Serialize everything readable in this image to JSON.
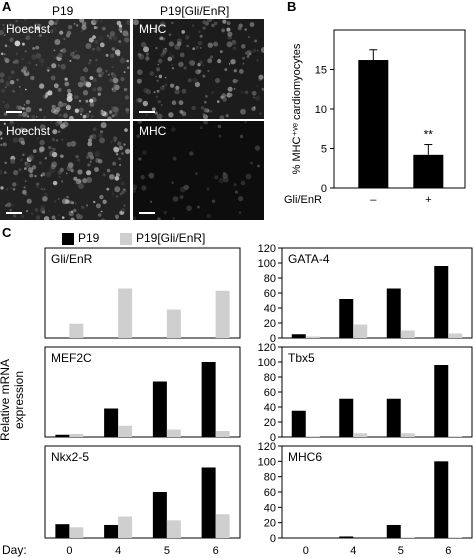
{
  "panelA": {
    "letter": "A",
    "col_headers": [
      "P19",
      "P19[Gli/EnR]"
    ],
    "tiles": [
      {
        "label": "Hoechst",
        "brightness": 0.85
      },
      {
        "label": "MHC",
        "brightness": 0.6
      },
      {
        "label": "Hoechst",
        "brightness": 0.7
      },
      {
        "label": "MHC",
        "brightness": 0.12
      }
    ]
  },
  "panelB": {
    "letter": "B",
    "chart_data": {
      "type": "bar",
      "categories": [
        "–",
        "+"
      ],
      "values": [
        16.2,
        4.2
      ],
      "errors": [
        1.3,
        1.3
      ],
      "ylabel": "% MHC⁺ᵛᵉ cardiomyocytes",
      "xlabel": "Gli/EnR",
      "ylim": [
        0,
        20
      ],
      "yticks": [
        0,
        5,
        10,
        15
      ],
      "annotation": "**",
      "color": "#000000"
    }
  },
  "panelC": {
    "letter": "C",
    "legend": [
      {
        "name": "P19",
        "color": "#000000"
      },
      {
        "name": "P19[Gli/EnR]",
        "color": "#cfcfcf"
      }
    ],
    "ylabel": "Relative mRNA expression",
    "day_label": "Day:",
    "days": [
      "0",
      "4",
      "5",
      "6"
    ],
    "chart_data": [
      {
        "type": "bar",
        "title": "Gli/EnR",
        "categories": [
          "0",
          "4",
          "5",
          "6"
        ],
        "ylim": [
          0,
          120
        ],
        "yticks": [],
        "series": [
          {
            "name": "P19",
            "values": [
              0,
              0,
              0,
              0
            ]
          },
          {
            "name": "P19[Gli/EnR]",
            "values": [
              19,
              66,
              38,
              63
            ]
          }
        ]
      },
      {
        "type": "bar",
        "title": "GATA-4",
        "categories": [
          "0",
          "4",
          "5",
          "6"
        ],
        "ylim": [
          0,
          120
        ],
        "yticks": [
          0,
          20,
          40,
          60,
          80,
          100,
          120
        ],
        "series": [
          {
            "name": "P19",
            "values": [
              5,
              52,
              66,
              96
            ]
          },
          {
            "name": "P19[Gli/EnR]",
            "values": [
              2,
              18,
              10,
              6
            ]
          }
        ]
      },
      {
        "type": "bar",
        "title": "MEF2C",
        "categories": [
          "0",
          "4",
          "5",
          "6"
        ],
        "ylim": [
          0,
          120
        ],
        "yticks": [],
        "series": [
          {
            "name": "P19",
            "values": [
              3,
              38,
              74,
              100
            ]
          },
          {
            "name": "P19[Gli/EnR]",
            "values": [
              4,
              15,
              10,
              8
            ]
          }
        ]
      },
      {
        "type": "bar",
        "title": "Tbx5",
        "categories": [
          "0",
          "4",
          "5",
          "6"
        ],
        "ylim": [
          0,
          120
        ],
        "yticks": [
          0,
          20,
          40,
          60,
          80,
          100,
          120
        ],
        "series": [
          {
            "name": "P19",
            "values": [
              35,
              51,
              51,
              96
            ]
          },
          {
            "name": "P19[Gli/EnR]",
            "values": [
              1,
              5,
              5,
              1
            ]
          }
        ]
      },
      {
        "type": "bar",
        "title": "Nkx2-5",
        "categories": [
          "0",
          "4",
          "5",
          "6"
        ],
        "ylim": [
          0,
          120
        ],
        "yticks": [],
        "series": [
          {
            "name": "P19",
            "values": [
              18,
              17,
              60,
              92
            ]
          },
          {
            "name": "P19[Gli/EnR]",
            "values": [
              14,
              28,
              23,
              31
            ]
          }
        ]
      },
      {
        "type": "bar",
        "title": "MHC6",
        "categories": [
          "0",
          "4",
          "5",
          "6"
        ],
        "ylim": [
          0,
          120
        ],
        "yticks": [
          0,
          20,
          40,
          60,
          80,
          100,
          120
        ],
        "series": [
          {
            "name": "P19",
            "values": [
              0,
              2,
              17,
              100
            ]
          },
          {
            "name": "P19[Gli/EnR]",
            "values": [
              0,
              0,
              1,
              1
            ]
          }
        ]
      }
    ],
    "sig_marks": {
      "gli_enr": [
        "**",
        "**",
        "**",
        "**"
      ],
      "gata4": [
        "*",
        "**",
        "**"
      ],
      "mef2c": [
        "**",
        "**",
        "**",
        "**"
      ],
      "tbx5": [
        "**",
        "**",
        "**"
      ],
      "nkx25": [
        "*"
      ],
      "mhc6": [
        "*",
        "**"
      ]
    }
  }
}
